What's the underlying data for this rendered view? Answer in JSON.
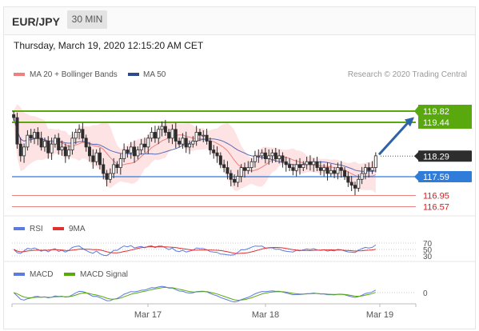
{
  "header": {
    "pair": "EUR/JPY",
    "timeframe": "30 MIN"
  },
  "timestamp": "Thursday, March 19, 2020 12:15:20 AM CET",
  "legend": {
    "ma20_bb": "MA 20 + Bollinger Bands",
    "ma50": "MA 50",
    "credit": "Research © 2020 Trading Central"
  },
  "colors": {
    "candle": "#2d2d2d",
    "bollinger_fill": "#fde0e0",
    "ma20": "#f08080",
    "ma50": "#5b6bb5",
    "target": "#58a80e",
    "pivot": "#2f7cd9",
    "support": "#e88080",
    "arrow": "#2d62a8",
    "rsi": "#5b7be0",
    "nine_ma": "#e03030",
    "macd": "#5b7be0",
    "macd_signal": "#58a80e"
  },
  "chart_data": [
    {
      "type": "candlestick",
      "title": "EUR/JPY 30 MIN",
      "x_tick_labels": [
        "Mar 17",
        "Mar 18",
        "Mar 19"
      ],
      "price_ylim": [
        116.3,
        120.0
      ],
      "levels": [
        {
          "label": "119.82",
          "value": 119.82,
          "kind": "target"
        },
        {
          "label": "119.44",
          "value": 119.44,
          "kind": "target"
        },
        {
          "label": "118.29",
          "value": 118.29,
          "kind": "last"
        },
        {
          "label": "117.59",
          "value": 117.59,
          "kind": "pivot"
        },
        {
          "label": "116.95",
          "value": 116.95,
          "kind": "support"
        },
        {
          "label": "116.57",
          "value": 116.57,
          "kind": "support"
        }
      ],
      "close_series": [
        119.6,
        118.7,
        118.3,
        118.6,
        119.0,
        118.9,
        119.1,
        118.9,
        118.6,
        118.8,
        118.4,
        118.7,
        118.9,
        118.5,
        118.6,
        118.3,
        118.5,
        118.9,
        119.1,
        119.2,
        118.9,
        118.6,
        118.3,
        118.1,
        118.4,
        118.0,
        117.7,
        117.5,
        117.7,
        118.0,
        117.9,
        118.2,
        118.5,
        118.4,
        118.6,
        118.3,
        118.5,
        118.7,
        118.6,
        118.9,
        119.1,
        118.9,
        119.2,
        119.3,
        119.1,
        118.9,
        119.2,
        118.8,
        118.7,
        118.9,
        118.6,
        118.7,
        118.8,
        119.1,
        119.0,
        119.0,
        118.8,
        118.5,
        118.4,
        118.3,
        118.0,
        117.9,
        117.7,
        117.5,
        117.4,
        117.6,
        117.9,
        117.8,
        117.9,
        118.1,
        118.3,
        118.3,
        118.4,
        118.2,
        118.3,
        118.4,
        118.2,
        118.3,
        118.1,
        118.0,
        117.9,
        117.8,
        118.0,
        117.9,
        118.0,
        118.1,
        118.0,
        118.1,
        117.9,
        117.8,
        117.9,
        117.7,
        117.8,
        117.7,
        117.9,
        117.8,
        117.6,
        117.4,
        117.3,
        117.2,
        117.5,
        117.7,
        117.9,
        117.8,
        117.9,
        118.3
      ],
      "y_unit": "JPY"
    },
    {
      "type": "line",
      "title": "RSI",
      "series": [
        {
          "name": "RSI"
        },
        {
          "name": "9MA"
        }
      ],
      "y_ticks": [
        70,
        50,
        30
      ],
      "ylim": [
        0,
        100
      ]
    },
    {
      "type": "line",
      "title": "MACD",
      "series": [
        {
          "name": "MACD"
        },
        {
          "name": "MACD Signal"
        }
      ],
      "y_ticks": [
        0
      ]
    }
  ]
}
